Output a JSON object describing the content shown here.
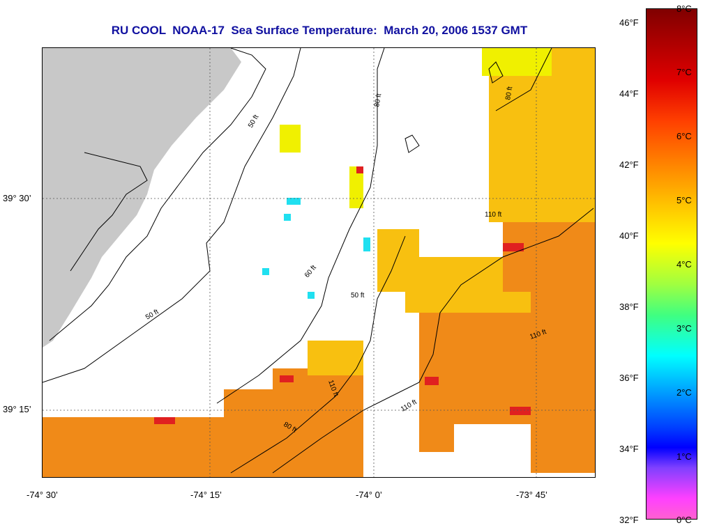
{
  "title": "RU COOL  NOAA-17  Sea Surface Temperature:  March 20, 2006 1537 GMT",
  "lon_labels": [
    "-74° 30’",
    "-74° 15’",
    "-74° 0’",
    "-73° 45’"
  ],
  "lat_labels": [
    "39° 30’",
    "39° 15’"
  ],
  "contour_labels": [
    "50 ft",
    "50 ft",
    "60 ft",
    "80 ft",
    "80 ft",
    "50 ft",
    "110 ft",
    "110 ft",
    "110 ft",
    "110 ft",
    "80 ft"
  ],
  "colorbar": {
    "fahrenheit": [
      "46°F",
      "44°F",
      "42°F",
      "40°F",
      "38°F",
      "36°F",
      "34°F",
      "32°F"
    ],
    "celsius": [
      "8°C",
      "7°C",
      "6°C",
      "5°C",
      "4°C",
      "3°C",
      "2°C",
      "1°C",
      "0°C"
    ]
  },
  "colors": {
    "land": "#c8c8c8",
    "title": "#1010a0",
    "warm": "#f08a18",
    "mid": "#f8c010",
    "cool": "#f0f000",
    "hot": "#e02020",
    "cyan": "#20e0f0"
  }
}
